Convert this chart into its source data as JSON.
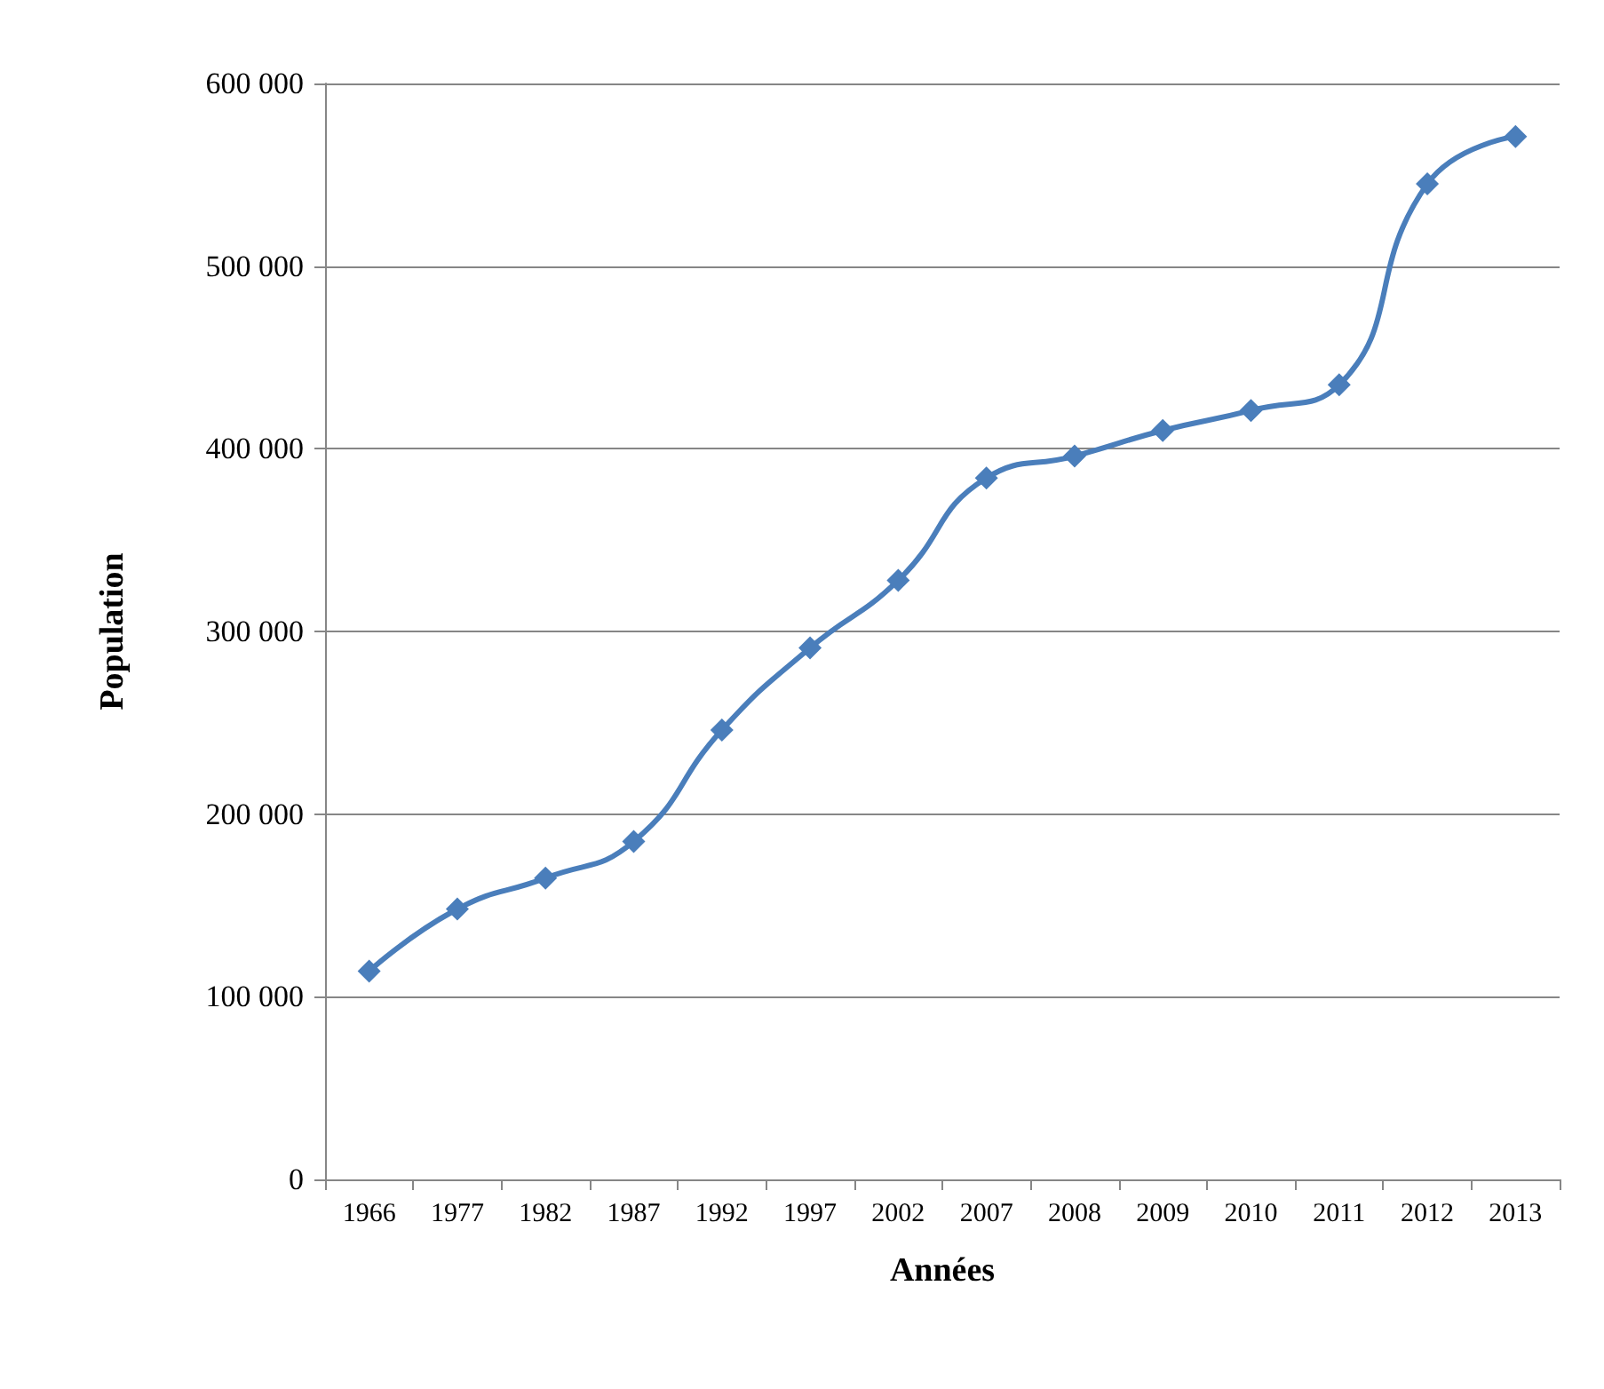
{
  "chart_data": {
    "type": "line",
    "xlabel": "Années",
    "ylabel": "Population",
    "categories": [
      "1966",
      "1977",
      "1982",
      "1987",
      "1992",
      "1997",
      "2002",
      "2007",
      "2008",
      "2009",
      "2010",
      "2011",
      "2012",
      "2013"
    ],
    "series": [
      {
        "color": "#4a7ebb",
        "values": [
          114000,
          148000,
          165000,
          185000,
          246000,
          291000,
          328000,
          384000,
          396000,
          410000,
          421000,
          435000,
          545000,
          571000
        ]
      }
    ],
    "ylim": [
      0,
      600000
    ],
    "yticks": [
      {
        "value": 0,
        "label": "0"
      },
      {
        "value": 100000,
        "label": "100 000"
      },
      {
        "value": 200000,
        "label": "200 000"
      },
      {
        "value": 300000,
        "label": "300 000"
      },
      {
        "value": 400000,
        "label": "400 000"
      },
      {
        "value": 500000,
        "label": "500 000"
      },
      {
        "value": 600000,
        "label": "600 000"
      }
    ],
    "grid": "y",
    "marker": "diamond",
    "line_style": "solid"
  }
}
